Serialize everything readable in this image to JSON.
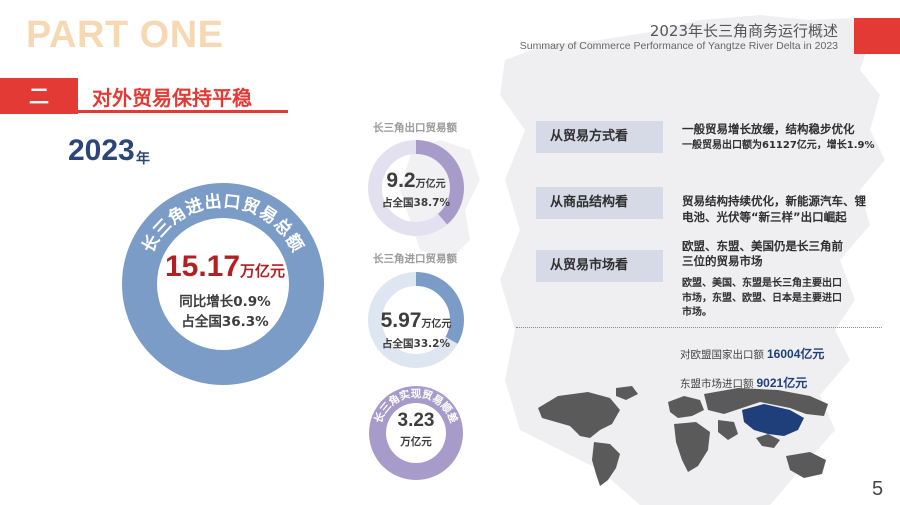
{
  "header": {
    "part_title": "PART ONE",
    "title": "2023年长三角商务运行概述",
    "subtitle": "Summary of Commerce Performance of Yangtze River Delta in 2023"
  },
  "section": {
    "number": "二",
    "title": "对外贸易保持平稳"
  },
  "total": {
    "year": "2023",
    "year_suffix": "年",
    "ring_label": "长三角进出口贸易总额",
    "value": "15.17",
    "unit": "万亿元",
    "yoy": "同比增长0.9%",
    "share": "占全国36.3%"
  },
  "export": {
    "label": "长三角出口贸易额",
    "value": "9.2",
    "unit": "万亿元",
    "share": "占全国38.7%",
    "share_fraction": 0.387
  },
  "import": {
    "label": "长三角进口贸易额",
    "value": "5.97",
    "unit": "万亿元",
    "share": "占全国33.2%",
    "share_fraction": 0.332
  },
  "surplus": {
    "label": "长三角实现贸易顺差",
    "value": "3.23",
    "unit": "万亿元"
  },
  "categories": [
    {
      "box": "从贸易方式看",
      "head": "一般贸易增长放缓，结构稳步优化",
      "lines": [
        "一般贸易出口额为61127亿元，增长1.9%"
      ]
    },
    {
      "box": "从商品结构看",
      "head": "",
      "lines": [
        "贸易结构持续优化，新能源汽车、锂",
        "电池、光伏等“新三样”出口崛起"
      ]
    },
    {
      "box": "从贸易市场看",
      "head": "",
      "lines": [
        "欧盟、东盟、美国仍是长三角前",
        "三位的贸易市场",
        "",
        "欧盟、美国、东盟是长三角主要出口",
        "市场，东盟、欧盟、日本是主要进口",
        "市场。"
      ]
    }
  ],
  "metrics": [
    {
      "label": "对欧盟国家出口额",
      "value": "16004亿元"
    },
    {
      "label": "东盟市场进口额",
      "value": "9021亿元"
    }
  ],
  "page_number": "5",
  "colors": {
    "accent_red": "#e43a36",
    "dark_red": "#b41f24",
    "navy": "#2d4678",
    "ring_blue": "#7c9cc8",
    "ring_purple": "#a79bc9",
    "box_gray": "#d6d9e6",
    "part_title": "#f6d9b4"
  },
  "icons": {
    "background": "china-map-silhouette",
    "world_map": "world-map-icon"
  }
}
